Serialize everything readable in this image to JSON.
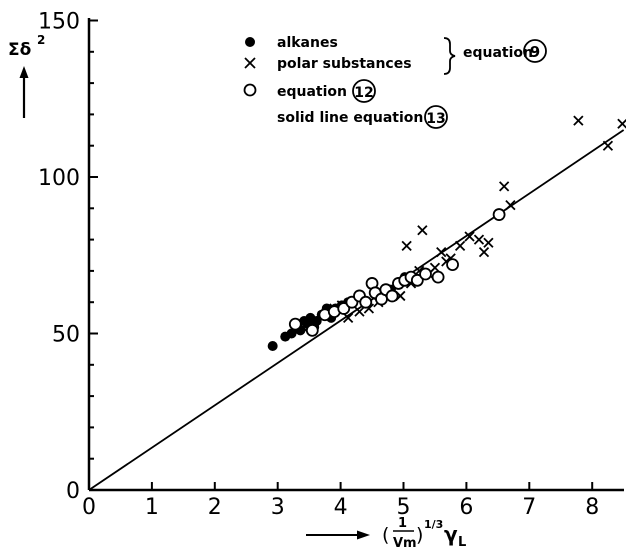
{
  "chart_data": {
    "type": "scatter",
    "xlim": [
      0,
      8.5
    ],
    "ylim": [
      0,
      150
    ],
    "x_ticks": [
      "0",
      "1",
      "2",
      "3",
      "4",
      "5",
      "6",
      "7",
      "8"
    ],
    "y_ticks": [
      "0",
      "50",
      "100",
      "150"
    ],
    "xlabel": {
      "prefix": "(",
      "frac_num": "1",
      "frac_den": "Vm",
      "exponent": "1/3",
      "symbol": "γ",
      "subscript": "L"
    },
    "ylabel": {
      "symbol": "Σδ",
      "exponent": "2"
    },
    "legend": {
      "alkanes": "alkanes",
      "polar": "polar substances",
      "eq9": "equation",
      "eq9_num": "9",
      "eq12": "equation",
      "eq12_num": "12",
      "line": "solid line equation",
      "line_num": "13"
    },
    "line": {
      "x": [
        0,
        8.5
      ],
      "y": [
        0,
        115
      ]
    },
    "series": [
      {
        "name": "alkanes",
        "marker": "filled-circle",
        "points": [
          [
            2.92,
            46
          ],
          [
            3.12,
            49
          ],
          [
            3.22,
            50
          ],
          [
            3.3,
            52
          ],
          [
            3.36,
            51
          ],
          [
            3.42,
            54
          ],
          [
            3.48,
            53
          ],
          [
            3.52,
            55
          ],
          [
            3.58,
            52
          ],
          [
            3.62,
            54
          ],
          [
            3.7,
            56
          ],
          [
            3.78,
            58
          ],
          [
            3.85,
            55
          ],
          [
            3.92,
            58
          ],
          [
            4.02,
            59
          ],
          [
            4.12,
            60
          ],
          [
            4.8,
            64
          ],
          [
            4.9,
            66
          ],
          [
            5.02,
            68
          ]
        ]
      },
      {
        "name": "polar substances",
        "marker": "cross",
        "points": [
          [
            3.4,
            52
          ],
          [
            3.9,
            58
          ],
          [
            4.02,
            59
          ],
          [
            4.12,
            55
          ],
          [
            4.3,
            57
          ],
          [
            4.45,
            58
          ],
          [
            4.6,
            60
          ],
          [
            4.75,
            63
          ],
          [
            4.95,
            62
          ],
          [
            5.05,
            78
          ],
          [
            5.12,
            66
          ],
          [
            5.25,
            70
          ],
          [
            5.3,
            83
          ],
          [
            5.4,
            69
          ],
          [
            5.5,
            71
          ],
          [
            5.6,
            76
          ],
          [
            5.68,
            73
          ],
          [
            5.75,
            74
          ],
          [
            5.9,
            78
          ],
          [
            6.05,
            81
          ],
          [
            6.2,
            80
          ],
          [
            6.28,
            76
          ],
          [
            6.35,
            79
          ],
          [
            6.6,
            97
          ],
          [
            6.7,
            91
          ],
          [
            7.78,
            118
          ],
          [
            8.25,
            110
          ],
          [
            8.48,
            117
          ]
        ]
      },
      {
        "name": "equation 12",
        "marker": "open-circle",
        "points": [
          [
            3.28,
            53
          ],
          [
            3.55,
            51
          ],
          [
            3.75,
            56
          ],
          [
            3.9,
            57
          ],
          [
            4.05,
            58
          ],
          [
            4.18,
            60
          ],
          [
            4.3,
            62
          ],
          [
            4.4,
            60
          ],
          [
            4.5,
            66
          ],
          [
            4.55,
            63
          ],
          [
            4.65,
            61
          ],
          [
            4.72,
            64
          ],
          [
            4.82,
            62
          ],
          [
            4.92,
            66
          ],
          [
            5.02,
            67
          ],
          [
            5.12,
            68
          ],
          [
            5.22,
            67
          ],
          [
            5.35,
            69
          ],
          [
            5.55,
            68
          ],
          [
            5.78,
            72
          ],
          [
            6.52,
            88
          ]
        ]
      }
    ]
  }
}
